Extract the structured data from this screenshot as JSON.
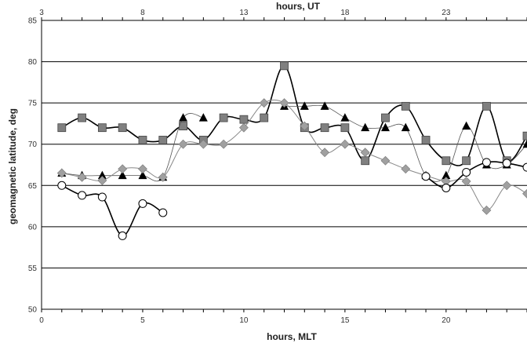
{
  "chart_data": {
    "type": "line",
    "xlabel": "hours, MLT",
    "x2label": "hours, UT",
    "ylabel": "geomagnetic latitude, deg",
    "xlim": [
      0,
      24
    ],
    "ylim": [
      50,
      85
    ],
    "xticks": [
      0,
      5,
      10,
      15,
      20
    ],
    "x2ticks": [
      3,
      8,
      13,
      18,
      23
    ],
    "yticks": [
      50,
      55,
      60,
      65,
      70,
      75,
      80,
      85
    ],
    "grid": "horizontal",
    "series": [
      {
        "marker": "square",
        "color": "#808080",
        "points": [
          [
            1,
            72
          ],
          [
            2,
            73.2
          ],
          [
            3,
            72
          ],
          [
            4,
            72
          ],
          [
            5,
            70.5
          ],
          [
            6,
            70.5
          ],
          [
            7,
            72.2
          ],
          [
            8,
            70.5
          ],
          [
            9,
            73.2
          ],
          [
            10,
            73
          ],
          [
            11,
            73.2
          ],
          [
            12,
            79.5
          ],
          [
            13,
            72
          ],
          [
            14,
            72
          ],
          [
            15,
            72
          ],
          [
            16,
            68
          ],
          [
            17,
            73.2
          ],
          [
            18,
            74.6
          ],
          [
            19,
            70.5
          ],
          [
            20,
            68
          ],
          [
            21,
            68
          ],
          [
            22,
            74.6
          ],
          [
            23,
            68
          ],
          [
            24,
            71
          ]
        ]
      },
      {
        "marker": "triangle",
        "color": "#000000",
        "points": [
          [
            1,
            66.5
          ],
          [
            2,
            66.2
          ],
          [
            3,
            66.2
          ],
          [
            4,
            66.2
          ],
          [
            5,
            66.2
          ],
          [
            6,
            66
          ],
          [
            7,
            73.2
          ],
          [
            8,
            73.2
          ],
          [
            12,
            74.6
          ],
          [
            13,
            74.6
          ],
          [
            14,
            74.6
          ],
          [
            15,
            73.2
          ],
          [
            16,
            72
          ],
          [
            17,
            72
          ],
          [
            18,
            72
          ],
          [
            19,
            66.2
          ],
          [
            20,
            66.2
          ],
          [
            21,
            72.2
          ],
          [
            22,
            67.5
          ],
          [
            23,
            67.5
          ],
          [
            24,
            70
          ]
        ]
      },
      {
        "marker": "diamond",
        "color": "#a0a0a0",
        "points": [
          [
            1,
            66.5
          ],
          [
            2,
            66
          ],
          [
            3,
            65.6
          ],
          [
            4,
            67
          ],
          [
            5,
            67
          ],
          [
            6,
            66
          ],
          [
            7,
            70
          ],
          [
            8,
            70
          ],
          [
            9,
            70
          ],
          [
            10,
            72
          ],
          [
            11,
            75
          ],
          [
            12,
            75
          ],
          [
            13,
            72.2
          ],
          [
            14,
            69
          ],
          [
            15,
            70
          ],
          [
            16,
            69
          ],
          [
            17,
            68
          ],
          [
            18,
            67
          ],
          [
            19,
            66.2
          ],
          [
            20,
            65.5
          ],
          [
            21,
            65.5
          ],
          [
            22,
            62
          ],
          [
            23,
            65
          ],
          [
            24,
            64
          ]
        ]
      },
      {
        "marker": "circle",
        "color": "#000000",
        "points": [
          [
            1,
            65
          ],
          [
            2,
            63.8
          ],
          [
            3,
            63.6
          ],
          [
            4,
            58.9
          ],
          [
            5,
            62.8
          ],
          [
            6,
            61.7
          ],
          [
            19,
            66.1
          ],
          [
            20,
            64.7
          ],
          [
            21,
            66.6
          ],
          [
            22,
            67.8
          ],
          [
            23,
            67.7
          ],
          [
            24,
            67.2
          ]
        ]
      }
    ]
  }
}
